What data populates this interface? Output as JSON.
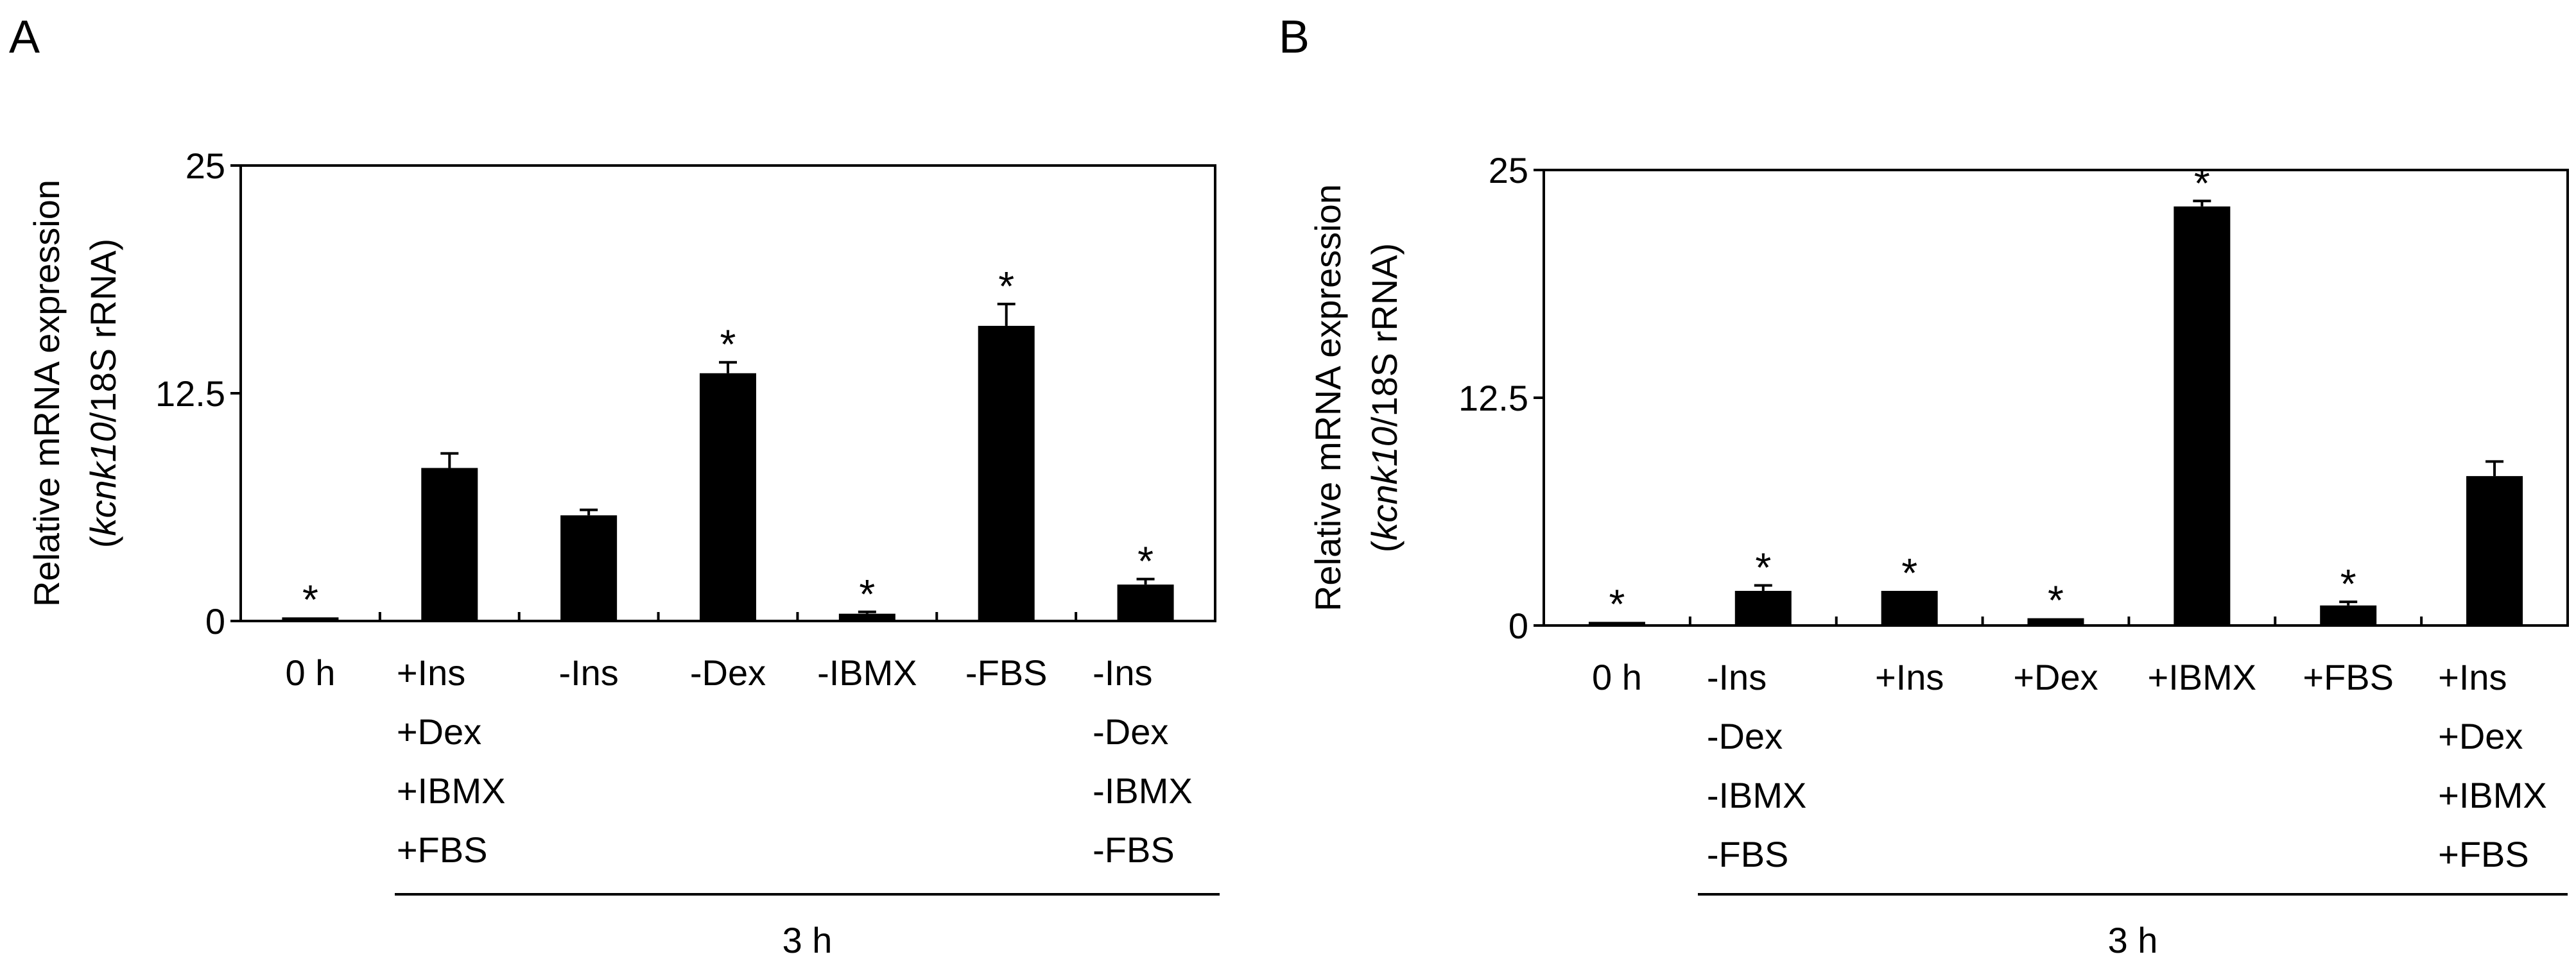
{
  "chart_data": [
    {
      "panel": "A",
      "type": "bar",
      "ylabel_line1": "Relative mRNA expression",
      "ylabel_line2_open": "(",
      "ylabel_line2_italic": "kcnk10",
      "ylabel_line2_rest": "/18S rRNA)",
      "ylim": [
        0,
        25
      ],
      "yticks": [
        "0",
        "12.5",
        "25"
      ],
      "ytick_values": [
        0,
        12.5,
        25
      ],
      "categories": [
        [
          "0 h"
        ],
        [
          "+Ins",
          "+Dex",
          "+IBMX",
          "+FBS"
        ],
        [
          "-Ins"
        ],
        [
          "-Dex"
        ],
        [
          "-IBMX"
        ],
        [
          "-FBS"
        ],
        [
          "-Ins",
          "-Dex",
          "-IBMX",
          "-FBS"
        ]
      ],
      "values": [
        0.2,
        8.4,
        5.8,
        13.6,
        0.4,
        16.2,
        2.0
      ],
      "errors": [
        0.0,
        0.8,
        0.3,
        0.6,
        0.1,
        1.2,
        0.3
      ],
      "significant": [
        true,
        false,
        false,
        true,
        true,
        true,
        true
      ],
      "significance_marker": "*",
      "group_label": "3 h",
      "grid": false
    },
    {
      "panel": "B",
      "type": "bar",
      "ylabel_line1": "Relative mRNA expression",
      "ylabel_line2_open": "(",
      "ylabel_line2_italic": "kcnk10",
      "ylabel_line2_rest": "/18S rRNA)",
      "ylim": [
        0,
        25
      ],
      "yticks": [
        "0",
        "12.5",
        "25"
      ],
      "ytick_values": [
        0,
        12.5,
        25
      ],
      "categories": [
        [
          "0 h"
        ],
        [
          "-Ins",
          "-Dex",
          "-IBMX",
          "-FBS"
        ],
        [
          "+Ins"
        ],
        [
          "+Dex"
        ],
        [
          "+IBMX"
        ],
        [
          "+FBS"
        ],
        [
          "+Ins",
          "+Dex",
          "+IBMX",
          "+FBS"
        ]
      ],
      "values": [
        0.2,
        1.9,
        1.9,
        0.4,
        23.0,
        1.1,
        8.2
      ],
      "errors": [
        0.0,
        0.3,
        0.0,
        0.0,
        0.3,
        0.2,
        0.8
      ],
      "significant": [
        true,
        true,
        true,
        true,
        true,
        true,
        false
      ],
      "significance_marker": "*",
      "group_label": "3 h",
      "grid": false
    }
  ]
}
